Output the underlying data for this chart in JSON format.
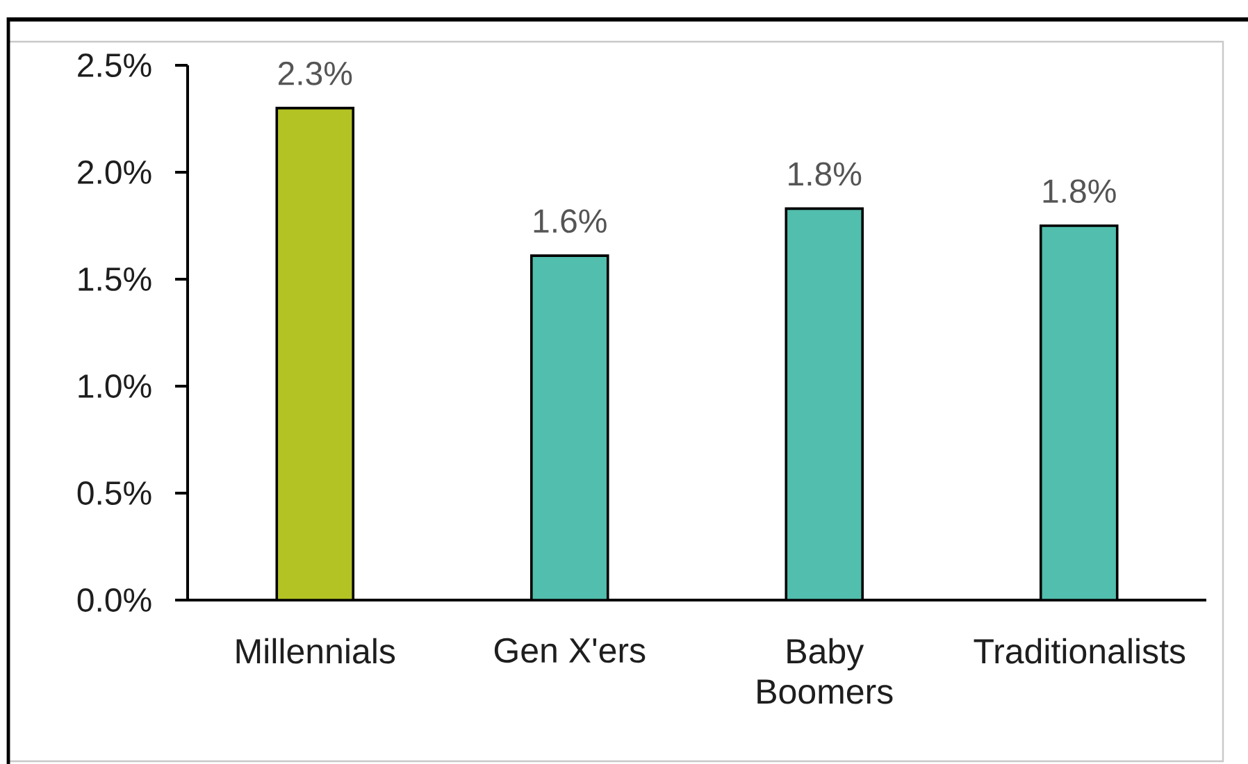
{
  "chart_data": {
    "type": "bar",
    "categories": [
      "Millennials",
      "Gen X'ers",
      "Baby Boomers",
      "Traditionalists"
    ],
    "values": [
      2.3,
      1.61,
      1.83,
      1.75
    ],
    "colors": [
      "#b3c323",
      "#52bead",
      "#52bead",
      "#52bead"
    ],
    "value_labels": [
      "2.3%",
      "1.6%",
      "1.8%",
      "1.8%"
    ],
    "ylim": [
      0,
      2.5
    ],
    "yticks": [
      {
        "value": 0,
        "label": "0.0%"
      },
      {
        "value": 0.5,
        "label": "0.5%"
      },
      {
        "value": 1.0,
        "label": "1.0%"
      },
      {
        "value": 1.5,
        "label": "1.5%"
      },
      {
        "value": 2.0,
        "label": "2.0%"
      },
      {
        "value": 2.5,
        "label": "2.5%"
      }
    ]
  }
}
